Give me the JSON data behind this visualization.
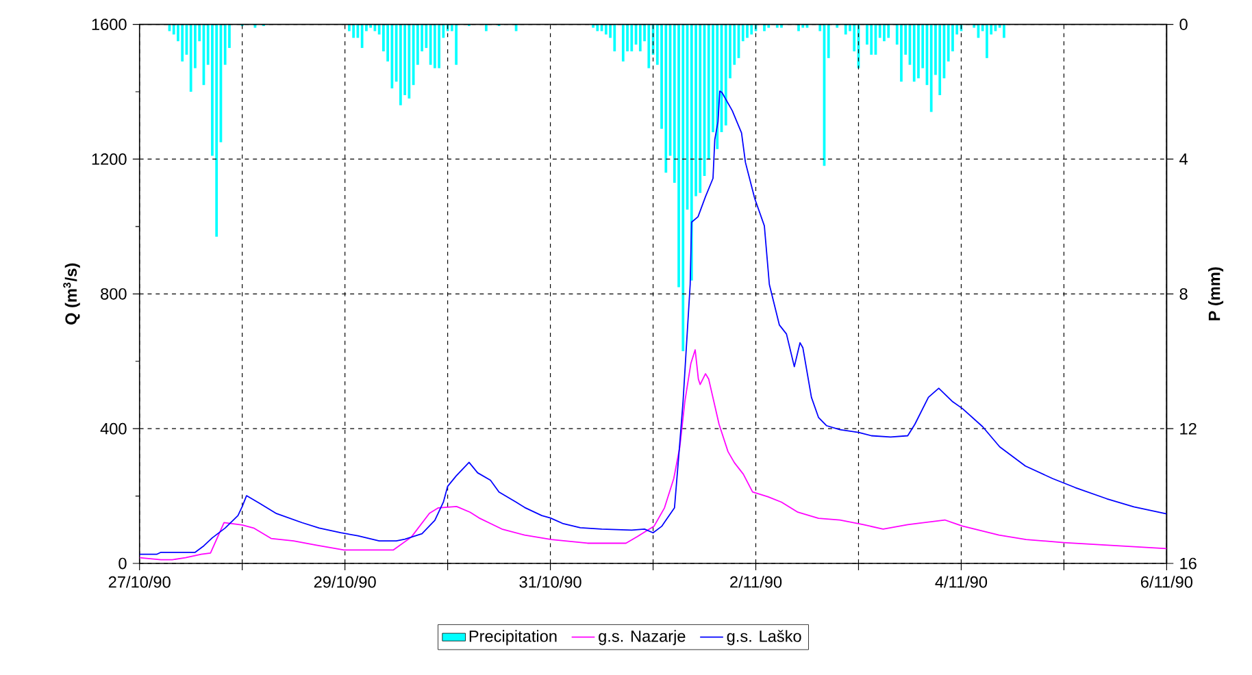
{
  "chart_data": {
    "type": "line",
    "ylabel": "Q (m$^{3}$/s)",
    "y2label": "P (mm)",
    "xlim": [
      "1990-10-27",
      "1990-11-06"
    ],
    "xticks": [
      {
        "value": "1990-10-27",
        "label": "27/10/90"
      },
      {
        "value": "1990-10-28",
        "label": null
      },
      {
        "value": "1990-10-29",
        "label": "29/10/90"
      },
      {
        "value": "1990-10-30",
        "label": null
      },
      {
        "value": "1990-10-31",
        "label": "31/10/90"
      },
      {
        "value": "1990-11-01",
        "label": null
      },
      {
        "value": "1990-11-02",
        "label": "2/11/90"
      },
      {
        "value": "1990-11-03",
        "label": null
      },
      {
        "value": "1990-11-04",
        "label": "4/11/90"
      },
      {
        "value": "1990-11-05",
        "label": null
      },
      {
        "value": "1990-11-06",
        "label": "6/11/90"
      }
    ],
    "ylim": [
      0,
      1600
    ],
    "yticks": [
      0,
      {
        "value": 200,
        "label": null
      },
      400,
      {
        "value": 600,
        "label": null
      },
      800,
      {
        "value": 1000,
        "label": null
      },
      1200,
      {
        "value": 1400,
        "label": null
      },
      1600
    ],
    "y2lim": [
      16,
      0
    ],
    "y2ticks": [
      0,
      4,
      8,
      12,
      16
    ],
    "grid": true,
    "legend": "bottom",
    "series": [
      {
        "name": "Precipitation",
        "type": "bar",
        "axis": "y2",
        "color": "#00ffff",
        "x": [
          "1990-10-27T07:00",
          "1990-10-27T08:00",
          "1990-10-27T09:00",
          "1990-10-27T10:00",
          "1990-10-27T11:00",
          "1990-10-27T12:00",
          "1990-10-27T13:00",
          "1990-10-27T14:00",
          "1990-10-27T15:00",
          "1990-10-27T16:00",
          "1990-10-27T17:00",
          "1990-10-27T18:00",
          "1990-10-27T19:00",
          "1990-10-27T20:00",
          "1990-10-27T21:00",
          "1990-10-28T00:00",
          "1990-10-28T03:00",
          "1990-10-28T05:00",
          "1990-10-29T01:00",
          "1990-10-29T02:00",
          "1990-10-29T03:00",
          "1990-10-29T04:00",
          "1990-10-29T05:00",
          "1990-10-29T06:00",
          "1990-10-29T07:00",
          "1990-10-29T08:00",
          "1990-10-29T09:00",
          "1990-10-29T10:00",
          "1990-10-29T11:00",
          "1990-10-29T12:00",
          "1990-10-29T13:00",
          "1990-10-29T14:00",
          "1990-10-29T15:00",
          "1990-10-29T16:00",
          "1990-10-29T17:00",
          "1990-10-29T18:00",
          "1990-10-29T19:00",
          "1990-10-29T20:00",
          "1990-10-29T21:00",
          "1990-10-29T22:00",
          "1990-10-29T23:00",
          "1990-10-30T00:00",
          "1990-10-30T01:00",
          "1990-10-30T02:00",
          "1990-10-30T05:00",
          "1990-10-30T09:00",
          "1990-10-30T12:00",
          "1990-10-30T16:00",
          "1990-10-31T10:00",
          "1990-10-31T11:00",
          "1990-10-31T12:00",
          "1990-10-31T13:00",
          "1990-10-31T14:00",
          "1990-10-31T15:00",
          "1990-10-31T17:00",
          "1990-10-31T18:00",
          "1990-10-31T19:00",
          "1990-10-31T20:00",
          "1990-10-31T21:00",
          "1990-10-31T22:00",
          "1990-10-31T23:00",
          "1990-11-01T00:00",
          "1990-11-01T01:00",
          "1990-11-01T02:00",
          "1990-11-01T03:00",
          "1990-11-01T04:00",
          "1990-11-01T05:00",
          "1990-11-01T06:00",
          "1990-11-01T07:00",
          "1990-11-01T08:00",
          "1990-11-01T09:00",
          "1990-11-01T10:00",
          "1990-11-01T11:00",
          "1990-11-01T12:00",
          "1990-11-01T13:00",
          "1990-11-01T14:00",
          "1990-11-01T15:00",
          "1990-11-01T16:00",
          "1990-11-01T17:00",
          "1990-11-01T18:00",
          "1990-11-01T19:00",
          "1990-11-01T20:00",
          "1990-11-01T21:00",
          "1990-11-01T22:00",
          "1990-11-01T23:00",
          "1990-11-02T00:00",
          "1990-11-02T02:00",
          "1990-11-02T03:00",
          "1990-11-02T05:00",
          "1990-11-02T06:00",
          "1990-11-02T10:00",
          "1990-11-02T11:00",
          "1990-11-02T12:00",
          "1990-11-02T15:00",
          "1990-11-02T16:00",
          "1990-11-02T17:00",
          "1990-11-02T19:00",
          "1990-11-02T21:00",
          "1990-11-02T22:00",
          "1990-11-02T23:00",
          "1990-11-03T00:00",
          "1990-11-03T02:00",
          "1990-11-03T03:00",
          "1990-11-03T04:00",
          "1990-11-03T05:00",
          "1990-11-03T06:00",
          "1990-11-03T07:00",
          "1990-11-03T09:00",
          "1990-11-03T10:00",
          "1990-11-03T11:00",
          "1990-11-03T12:00",
          "1990-11-03T13:00",
          "1990-11-03T14:00",
          "1990-11-03T15:00",
          "1990-11-03T16:00",
          "1990-11-03T17:00",
          "1990-11-03T18:00",
          "1990-11-03T19:00",
          "1990-11-03T20:00",
          "1990-11-03T21:00",
          "1990-11-03T22:00",
          "1990-11-03T23:00",
          "1990-11-04T00:00",
          "1990-11-04T03:00",
          "1990-11-04T04:00",
          "1990-11-04T05:00",
          "1990-11-04T06:00",
          "1990-11-04T07:00",
          "1990-11-04T08:00",
          "1990-11-04T09:00",
          "1990-11-04T10:00"
        ],
        "values": [
          0.2,
          0.3,
          0.5,
          1.1,
          0.9,
          2.0,
          1.3,
          0.5,
          1.8,
          1.2,
          3.9,
          6.3,
          3.5,
          1.2,
          0.7,
          0.05,
          0.1,
          0.05,
          0.2,
          0.4,
          0.4,
          0.7,
          0.2,
          0.1,
          0.2,
          0.3,
          0.8,
          1.1,
          1.9,
          1.7,
          2.4,
          2.1,
          2.2,
          1.8,
          1.2,
          0.8,
          0.7,
          1.2,
          1.3,
          1.3,
          0.4,
          0.2,
          0.2,
          1.2,
          0.05,
          0.2,
          0.05,
          0.2,
          0.1,
          0.2,
          0.2,
          0.3,
          0.4,
          0.8,
          1.1,
          0.8,
          0.8,
          0.6,
          0.8,
          0.5,
          1.3,
          0.9,
          1.2,
          3.1,
          4.4,
          3.9,
          4.7,
          7.8,
          9.7,
          5.5,
          7.6,
          5.1,
          5.0,
          4.5,
          4.0,
          3.2,
          3.7,
          3.2,
          3.0,
          1.6,
          1.2,
          1.0,
          0.5,
          0.4,
          0.3,
          0.2,
          0.2,
          0.1,
          0.1,
          0.1,
          0.2,
          0.1,
          0.1,
          0.2,
          4.2,
          1.0,
          0.1,
          0.3,
          0.2,
          0.8,
          1.3,
          0.6,
          0.9,
          0.9,
          0.4,
          0.5,
          0.4,
          0.6,
          1.7,
          0.9,
          1.2,
          1.7,
          1.6,
          1.3,
          1.8,
          2.6,
          1.5,
          2.1,
          1.6,
          1.1,
          0.8,
          0.3,
          0.2,
          0.1,
          0.4,
          0.2,
          1.0,
          0.3,
          0.2,
          0.1,
          0.4
        ]
      },
      {
        "name": "g.s. Nazarje",
        "color": "#ff00ff",
        "x": [
          "1990-10-27T00:00",
          "1990-10-27T05:00",
          "1990-10-27T07:40",
          "1990-10-27T10:45",
          "1990-10-27T14:25",
          "1990-10-27T16:35",
          "1990-10-27T19:45",
          "1990-10-28T00:00",
          "1990-10-28T02:40",
          "1990-10-28T06:45",
          "1990-10-28T12:00",
          "1990-10-28T17:20",
          "1990-10-28T23:45",
          "1990-10-29T11:20",
          "1990-10-29T15:30",
          "1990-10-29T19:45",
          "1990-10-29T21:50",
          "1990-10-30T02:05",
          "1990-10-30T05:15",
          "1990-10-30T07:20",
          "1990-10-30T12:40",
          "1990-10-30T18:00",
          "1990-10-31T00:15",
          "1990-10-31T08:40",
          "1990-10-31T17:40",
          "1990-10-31T20:20",
          "1990-11-01T00:15",
          "1990-11-01T02:40",
          "1990-11-01T04:50",
          "1990-11-01T06:15",
          "1990-11-01T07:25",
          "1990-11-01T08:50",
          "1990-11-01T09:50",
          "1990-11-01T10:35",
          "1990-11-01T11:00",
          "1990-11-01T12:15",
          "1990-11-01T13:00",
          "1990-11-01T15:25",
          "1990-11-01T17:30",
          "1990-11-01T19:00",
          "1990-11-01T21:05",
          "1990-11-01T23:15",
          "1990-11-02T02:50",
          "1990-11-02T06:00",
          "1990-11-02T09:50",
          "1990-11-02T14:40",
          "1990-11-02T19:40",
          "1990-11-03T01:10",
          "1990-11-03T05:45",
          "1990-11-03T11:30",
          "1990-11-03T20:10",
          "1990-11-04T00:15",
          "1990-11-04T08:50",
          "1990-11-04T15:10",
          "1990-11-05T00:00",
          "1990-11-05T14:25",
          "1990-11-06T00:00"
        ],
        "values": [
          17,
          11,
          11,
          17,
          27,
          31,
          121,
          114,
          105,
          74,
          67,
          54,
          40,
          40,
          78,
          149,
          165,
          169,
          152,
          135,
          102,
          84,
          71,
          60,
          60,
          80,
          111,
          165,
          252,
          346,
          480,
          594,
          634,
          547,
          531,
          563,
          547,
          413,
          332,
          299,
          265,
          212,
          198,
          182,
          152,
          134,
          129,
          115,
          102,
          115,
          129,
          111,
          84,
          71,
          62,
          51,
          44
        ]
      },
      {
        "name": "g.s. Laško",
        "color": "#0000ff",
        "x": [
          "1990-10-27T00:00",
          "1990-10-27T04:00",
          "1990-10-27T05:00",
          "1990-10-27T13:00",
          "1990-10-27T15:00",
          "1990-10-27T17:00",
          "1990-10-27T20:00",
          "1990-10-27T23:00",
          "1990-10-28T00:00",
          "1990-10-28T01:00",
          "1990-10-28T04:00",
          "1990-10-28T08:00",
          "1990-10-28T14:00",
          "1990-10-28T18:00",
          "1990-10-28T23:00",
          "1990-10-29T03:00",
          "1990-10-29T08:00",
          "1990-10-29T12:00",
          "1990-10-29T14:00",
          "1990-10-29T18:00",
          "1990-10-29T21:00",
          "1990-10-29T23:00",
          "1990-10-30T00:00",
          "1990-10-30T02:00",
          "1990-10-30T05:00",
          "1990-10-30T07:00",
          "1990-10-30T10:00",
          "1990-10-30T12:00",
          "1990-10-30T16:00",
          "1990-10-30T18:00",
          "1990-10-30T22:00",
          "1990-10-31T00:00",
          "1990-10-31T03:00",
          "1990-10-31T07:00",
          "1990-10-31T12:00",
          "1990-10-31T19:00",
          "1990-10-31T22:00",
          "1990-11-01T00:00",
          "1990-11-01T02:00",
          "1990-11-01T05:00",
          "1990-11-01T06:00",
          "1990-11-01T07:00",
          "1990-11-01T08:40",
          "1990-11-01T09:00",
          "1990-11-01T10:30",
          "1990-11-01T12:15",
          "1990-11-01T14:00",
          "1990-11-01T14:25",
          "1990-11-01T15:10",
          "1990-11-01T15:35",
          "1990-11-01T16:05",
          "1990-11-01T18:30",
          "1990-11-01T20:40",
          "1990-11-01T21:35",
          "1990-11-01T23:45",
          "1990-11-02T02:00",
          "1990-11-02T03:10",
          "1990-11-02T05:30",
          "1990-11-02T07:10",
          "1990-11-02T09:00",
          "1990-11-02T10:20",
          "1990-11-02T11:00",
          "1990-11-02T13:00",
          "1990-11-02T14:40",
          "1990-11-02T16:30",
          "1990-11-02T19:40",
          "1990-11-03T00:00",
          "1990-11-03T03:00",
          "1990-11-03T07:30",
          "1990-11-03T11:30",
          "1990-11-03T13:10",
          "1990-11-03T16:20",
          "1990-11-03T18:45",
          "1990-11-03T22:00",
          "1990-11-04T00:15",
          "1990-11-04T05:00",
          "1990-11-04T09:00",
          "1990-11-04T15:00",
          "1990-11-04T21:20",
          "1990-11-05T02:40",
          "1990-11-05T10:00",
          "1990-11-05T16:20",
          "1990-11-06T00:00"
        ],
        "values": [
          27,
          27,
          33,
          33,
          52,
          76,
          105,
          142,
          169,
          201,
          179,
          148,
          121,
          105,
          91,
          82,
          67,
          67,
          72,
          88,
          128,
          182,
          229,
          260,
          300,
          269,
          247,
          212,
          182,
          166,
          142,
          135,
          118,
          106,
          102,
          99,
          102,
          91,
          110,
          165,
          319,
          480,
          828,
          1013,
          1029,
          1089,
          1143,
          1258,
          1311,
          1402,
          1398,
          1344,
          1278,
          1190,
          1083,
          1002,
          828,
          708,
          681,
          584,
          655,
          640,
          493,
          433,
          409,
          397,
          389,
          379,
          375,
          379,
          413,
          493,
          520,
          480,
          460,
          406,
          346,
          289,
          252,
          225,
          192,
          168,
          147
        ]
      }
    ]
  }
}
